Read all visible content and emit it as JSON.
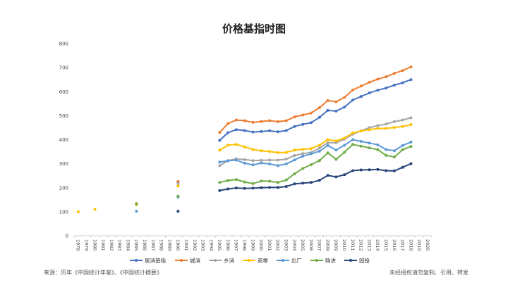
{
  "chart_data": {
    "type": "line",
    "title": "价格基指时图",
    "ylim": [
      0,
      800
    ],
    "yticks": [
      0,
      100,
      200,
      300,
      400,
      500,
      600,
      700,
      800
    ],
    "categories": [
      "1978",
      "1979",
      "1980",
      "1981",
      "1982",
      "1983",
      "1984",
      "1985",
      "1986",
      "1987",
      "1988",
      "1989",
      "1990",
      "1991",
      "1992",
      "1993",
      "1994",
      "1995",
      "1996",
      "1997",
      "1998",
      "1999",
      "2000",
      "2001",
      "2002",
      "2003",
      "2004",
      "2005",
      "2006",
      "2007",
      "2008",
      "2009",
      "2010",
      "2011",
      "2012",
      "2013",
      "2014",
      "2015",
      "2016",
      "2017",
      "2018",
      "2019",
      "2020"
    ],
    "grid": false,
    "legend_position": "bottom",
    "series": [
      {
        "name": "居消基指",
        "color": "#4472C4",
        "points": [
          [
            "1985",
            133
          ],
          [
            "1990",
            222
          ],
          [
            "1995",
            397
          ],
          [
            "1996",
            429
          ],
          [
            "1997",
            442
          ],
          [
            "1998",
            438
          ],
          [
            "1999",
            432
          ],
          [
            "2000",
            434
          ],
          [
            "2001",
            437
          ],
          [
            "2002",
            433
          ],
          [
            "2003",
            438
          ],
          [
            "2004",
            455
          ],
          [
            "2005",
            464
          ],
          [
            "2006",
            471
          ],
          [
            "2007",
            493
          ],
          [
            "2008",
            522
          ],
          [
            "2009",
            519
          ],
          [
            "2010",
            536
          ],
          [
            "2011",
            565
          ],
          [
            "2012",
            580
          ],
          [
            "2013",
            595
          ],
          [
            "2014",
            606
          ],
          [
            "2015",
            615
          ],
          [
            "2016",
            627
          ],
          [
            "2017",
            637
          ],
          [
            "2018",
            650
          ]
        ]
      },
      {
        "name": "城消",
        "color": "#ED7D31",
        "points": [
          [
            "1985",
            134
          ],
          [
            "1990",
            226
          ],
          [
            "1995",
            430
          ],
          [
            "1996",
            467
          ],
          [
            "1997",
            482
          ],
          [
            "1998",
            479
          ],
          [
            "1999",
            472
          ],
          [
            "2000",
            476
          ],
          [
            "2001",
            479
          ],
          [
            "2002",
            475
          ],
          [
            "2003",
            479
          ],
          [
            "2004",
            495
          ],
          [
            "2005",
            503
          ],
          [
            "2006",
            511
          ],
          [
            "2007",
            533
          ],
          [
            "2008",
            563
          ],
          [
            "2009",
            558
          ],
          [
            "2010",
            576
          ],
          [
            "2011",
            607
          ],
          [
            "2012",
            623
          ],
          [
            "2013",
            639
          ],
          [
            "2014",
            652
          ],
          [
            "2015",
            662
          ],
          [
            "2016",
            676
          ],
          [
            "2017",
            688
          ],
          [
            "2018",
            703
          ]
        ]
      },
      {
        "name": "乡消",
        "color": "#A5A5A5",
        "points": [
          [
            "1985",
            128
          ],
          [
            "1990",
            216
          ],
          [
            "1995",
            292
          ],
          [
            "1996",
            313
          ],
          [
            "1997",
            320
          ],
          [
            "1998",
            317
          ],
          [
            "1999",
            313
          ],
          [
            "2000",
            314
          ],
          [
            "2001",
            315
          ],
          [
            "2002",
            315
          ],
          [
            "2003",
            319
          ],
          [
            "2004",
            334
          ],
          [
            "2005",
            342
          ],
          [
            "2006",
            347
          ],
          [
            "2007",
            365
          ],
          [
            "2008",
            387
          ],
          [
            "2009",
            387
          ],
          [
            "2010",
            402
          ],
          [
            "2011",
            423
          ],
          [
            "2012",
            437
          ],
          [
            "2013",
            450
          ],
          [
            "2014",
            459
          ],
          [
            "2015",
            465
          ],
          [
            "2016",
            475
          ],
          [
            "2017",
            482
          ],
          [
            "2018",
            491
          ]
        ]
      },
      {
        "name": "商零",
        "color": "#FFC000",
        "points": [
          [
            "1978",
            100
          ],
          [
            "1980",
            110
          ],
          [
            "1985",
            129
          ],
          [
            "1990",
            207
          ],
          [
            "1995",
            356
          ],
          [
            "1996",
            377
          ],
          [
            "1997",
            380
          ],
          [
            "1998",
            370
          ],
          [
            "1999",
            359
          ],
          [
            "2000",
            354
          ],
          [
            "2001",
            351
          ],
          [
            "2002",
            346
          ],
          [
            "2003",
            347
          ],
          [
            "2004",
            357
          ],
          [
            "2005",
            360
          ],
          [
            "2006",
            363
          ],
          [
            "2007",
            377
          ],
          [
            "2008",
            400
          ],
          [
            "2009",
            395
          ],
          [
            "2010",
            407
          ],
          [
            "2011",
            428
          ],
          [
            "2012",
            436
          ],
          [
            "2013",
            442
          ],
          [
            "2014",
            447
          ],
          [
            "2015",
            447
          ],
          [
            "2016",
            451
          ],
          [
            "2017",
            455
          ],
          [
            "2018",
            463
          ]
        ]
      },
      {
        "name": "出厂",
        "color": "#5B9BD5",
        "points": [
          [
            "1985",
            102
          ],
          [
            "1990",
            161
          ],
          [
            "1995",
            307
          ],
          [
            "1996",
            312
          ],
          [
            "1997",
            315
          ],
          [
            "1998",
            302
          ],
          [
            "1999",
            295
          ],
          [
            "2000",
            303
          ],
          [
            "2001",
            299
          ],
          [
            "2002",
            292
          ],
          [
            "2003",
            299
          ],
          [
            "2004",
            316
          ],
          [
            "2005",
            331
          ],
          [
            "2006",
            341
          ],
          [
            "2007",
            352
          ],
          [
            "2008",
            376
          ],
          [
            "2009",
            357
          ],
          [
            "2010",
            377
          ],
          [
            "2011",
            400
          ],
          [
            "2012",
            393
          ],
          [
            "2013",
            386
          ],
          [
            "2014",
            379
          ],
          [
            "2015",
            359
          ],
          [
            "2016",
            354
          ],
          [
            "2017",
            376
          ],
          [
            "2018",
            390
          ]
        ]
      },
      {
        "name": "购进",
        "color": "#70AD47",
        "points": [
          [
            "1985",
            133
          ],
          [
            "1990",
            165
          ],
          [
            "1995",
            222
          ],
          [
            "1996",
            230
          ],
          [
            "1997",
            234
          ],
          [
            "1998",
            224
          ],
          [
            "1999",
            217
          ],
          [
            "2000",
            228
          ],
          [
            "2001",
            227
          ],
          [
            "2002",
            222
          ],
          [
            "2003",
            232
          ],
          [
            "2004",
            258
          ],
          [
            "2005",
            280
          ],
          [
            "2006",
            296
          ],
          [
            "2007",
            313
          ],
          [
            "2008",
            345
          ],
          [
            "2009",
            318
          ],
          [
            "2010",
            348
          ],
          [
            "2011",
            380
          ],
          [
            "2012",
            373
          ],
          [
            "2013",
            366
          ],
          [
            "2014",
            358
          ],
          [
            "2015",
            335
          ],
          [
            "2016",
            328
          ],
          [
            "2017",
            358
          ],
          [
            "2018",
            372
          ]
        ]
      },
      {
        "name": "固投",
        "color": "#264478",
        "points": [
          [
            "1990",
            102
          ],
          [
            "1995",
            188
          ],
          [
            "1996",
            195
          ],
          [
            "1997",
            199
          ],
          [
            "1998",
            197
          ],
          [
            "1999",
            198
          ],
          [
            "2000",
            200
          ],
          [
            "2001",
            201
          ],
          [
            "2002",
            201
          ],
          [
            "2003",
            205
          ],
          [
            "2004",
            216
          ],
          [
            "2005",
            219
          ],
          [
            "2006",
            222
          ],
          [
            "2007",
            231
          ],
          [
            "2008",
            251
          ],
          [
            "2009",
            245
          ],
          [
            "2010",
            254
          ],
          [
            "2011",
            271
          ],
          [
            "2012",
            274
          ],
          [
            "2013",
            275
          ],
          [
            "2014",
            276
          ],
          [
            "2015",
            271
          ],
          [
            "2016",
            270
          ],
          [
            "2017",
            285
          ],
          [
            "2018",
            300
          ]
        ]
      }
    ]
  },
  "footer": {
    "source": "来源：历年《中国统计年鉴》、《中国统计摘要》",
    "notice": "未经授权请勿复制、引用、转发"
  }
}
